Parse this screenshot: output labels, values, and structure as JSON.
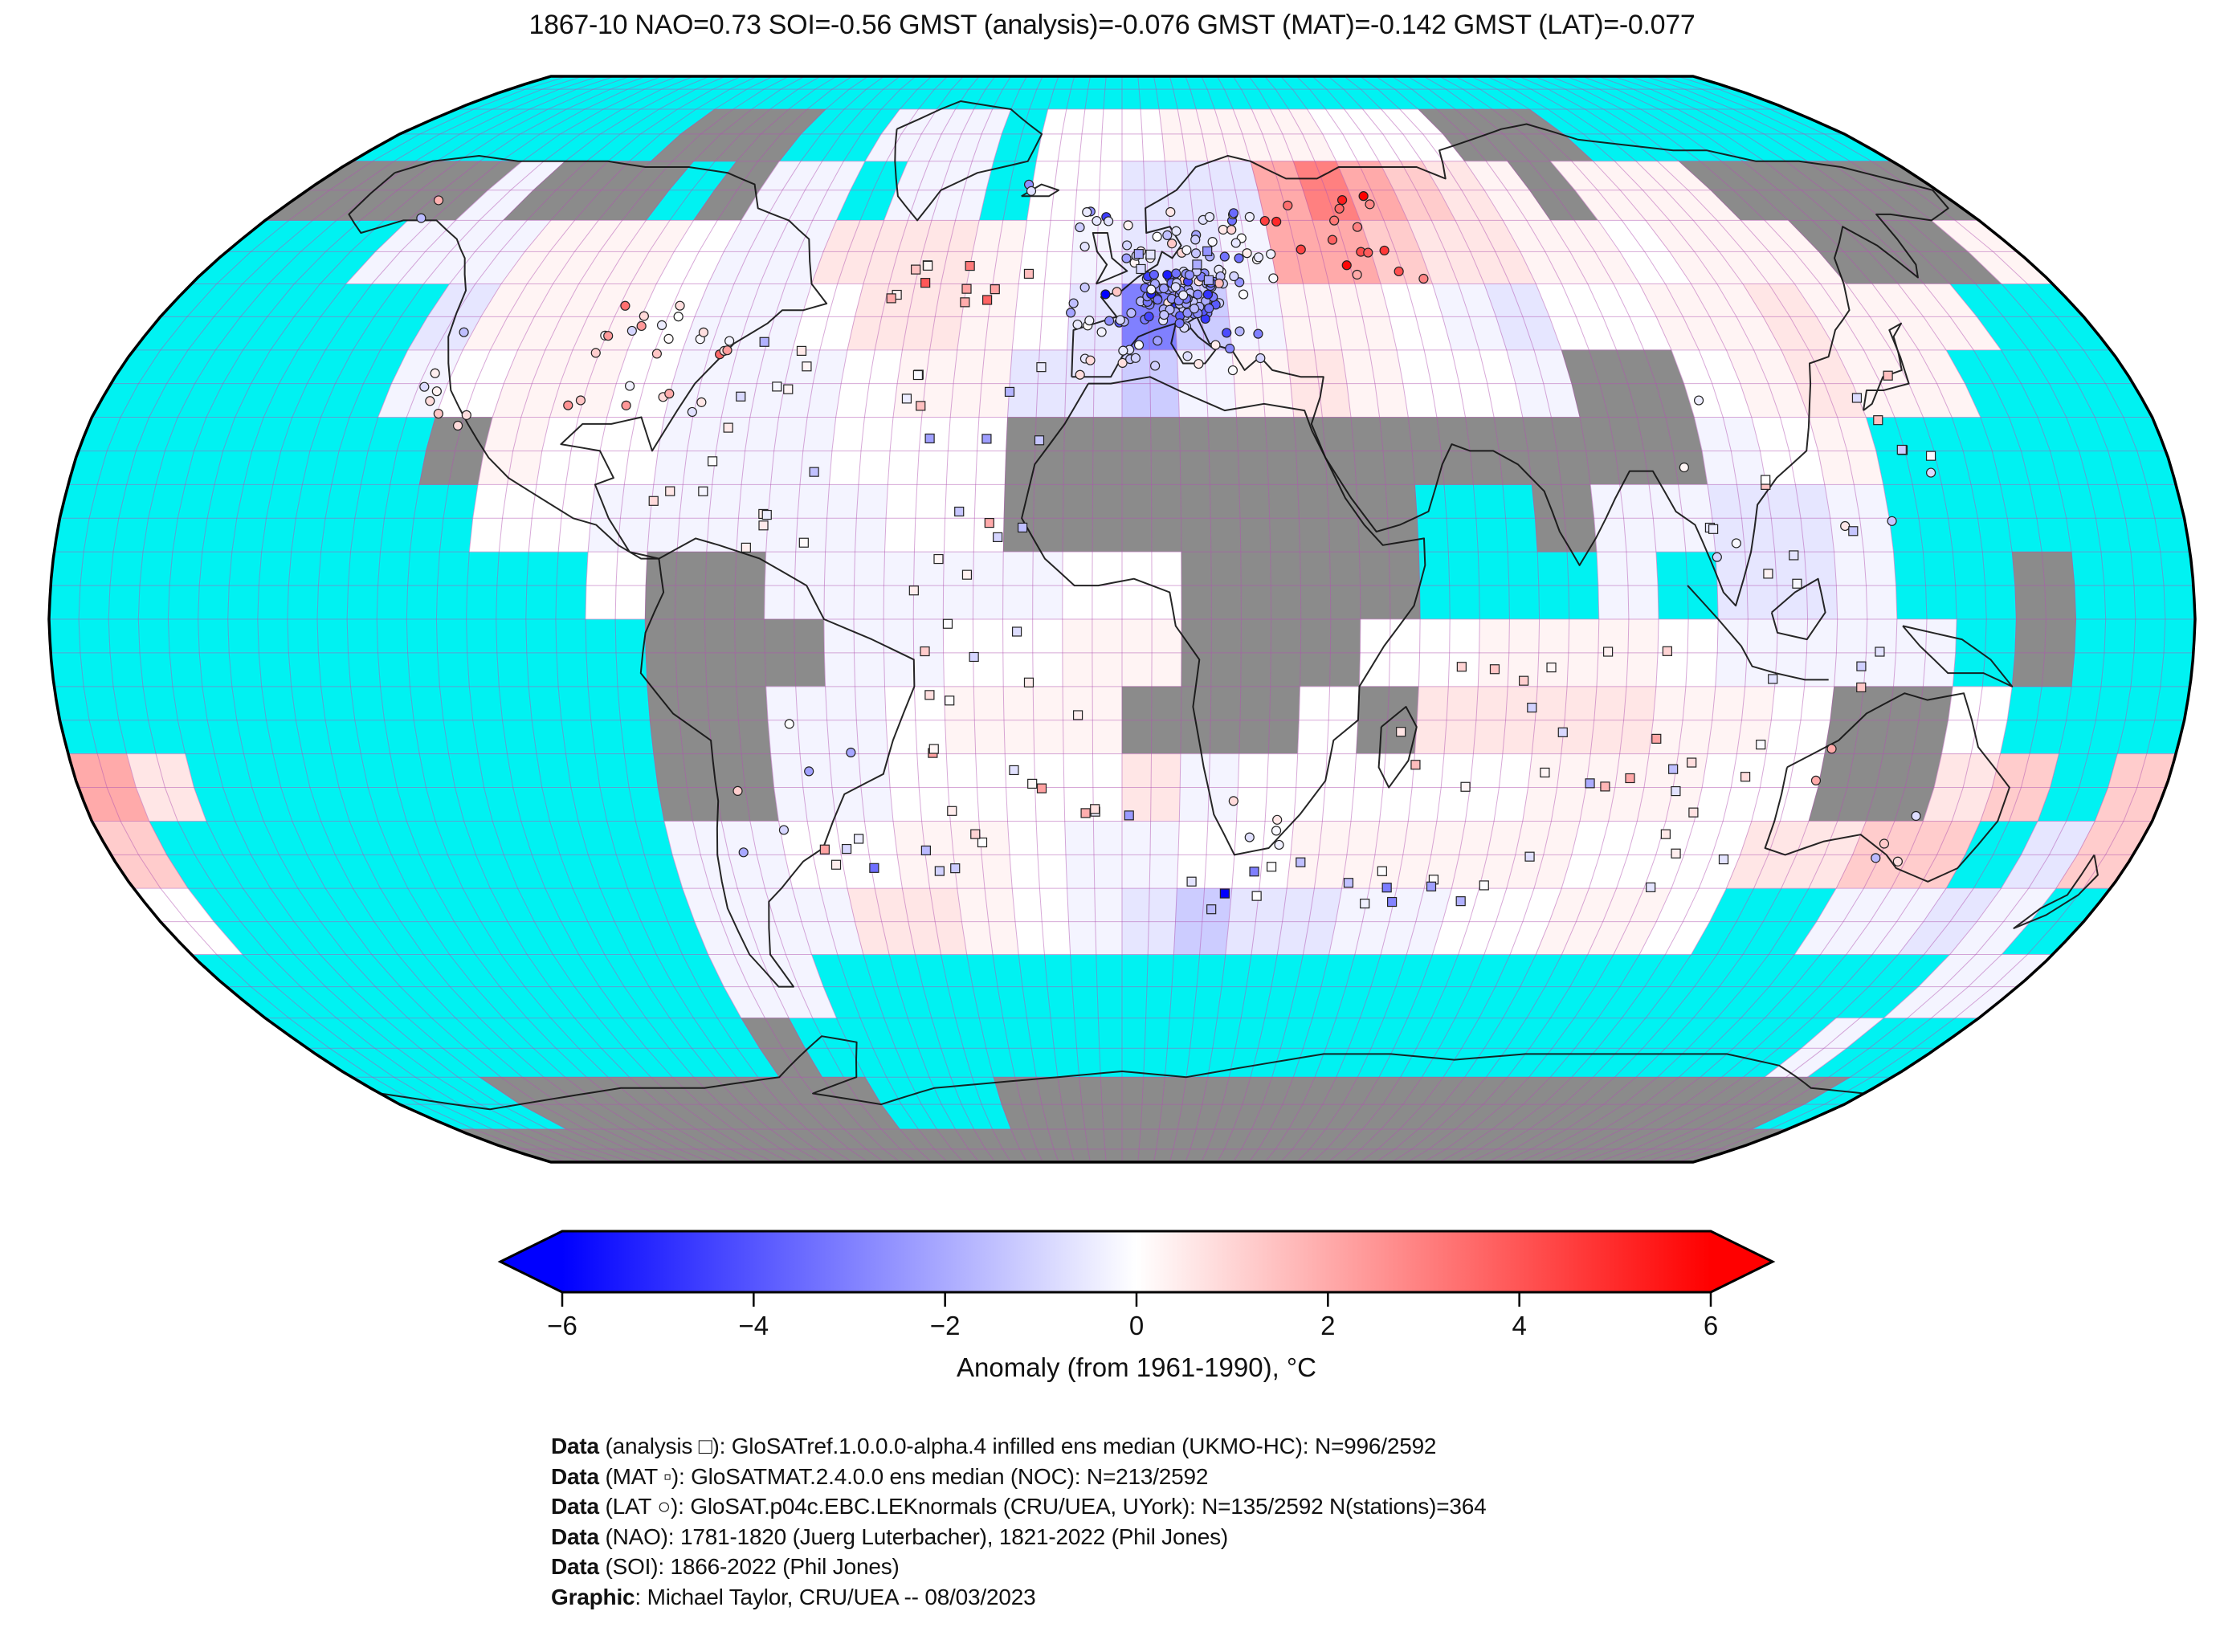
{
  "title": "1867-10 NAO=0.73 SOI=-0.56 GMST (analysis)=-0.076 GMST (MAT)=-0.142 GMST (LAT)=-0.077",
  "footer": {
    "lines": [
      {
        "bold": "Data",
        "rest": " (analysis □): GloSATref.1.0.0.0-alpha.4 infilled ens median (UKMO-HC): N=996/2592"
      },
      {
        "bold": "Data",
        "rest": " (MAT ▫): GloSATMAT.2.4.0.0 ens median (NOC): N=213/2592"
      },
      {
        "bold": "Data",
        "rest": " (LAT ○): GloSAT.p04c.EBC.LEKnormals (CRU/UEA, UYork): N=135/2592 N(stations)=364"
      },
      {
        "bold": "Data",
        "rest": " (NAO): 1781-1820 (Juerg Luterbacher), 1821-2022 (Phil Jones)"
      },
      {
        "bold": "Data",
        "rest": " (SOI): 1866-2022 (Phil Jones)"
      },
      {
        "bold": "Graphic",
        "rest": ": Michael Taylor, CRU/UEA -- 08/03/2023"
      }
    ]
  },
  "chart_data": {
    "type": "heatmap",
    "projection": "Robinson",
    "date": "1867-10",
    "indices": {
      "NAO": 0.73,
      "SOI": -0.56,
      "GMST_analysis": -0.076,
      "GMST_MAT": -0.142,
      "GMST_LAT": -0.077
    },
    "station_counts": {
      "analysis": "996/2592",
      "MAT": "213/2592",
      "LAT": "135/2592",
      "LAT_stations": 364
    },
    "legend_markers": {
      "analysis": "□",
      "MAT": "▫",
      "LAT": "○"
    },
    "colorbar": {
      "label": "Anomaly (from 1961-1990), °C",
      "tick_labels": [
        "−6",
        "−4",
        "−2",
        "0",
        "2",
        "4",
        "6"
      ],
      "vmin": -6,
      "vmax": 6,
      "cmap": "blue-white-red",
      "left_color": "#0000FF",
      "mid_color": "#FFFFFF",
      "right_color": "#FF0000"
    },
    "colors": {
      "ocean_no_data": "#00F2F2",
      "land_no_data": "#8B8B8B",
      "graticule": "#B254B2",
      "coastline": "#141414"
    },
    "grid": {
      "cell_deg": 10,
      "order": "rows from 90N..90S, 36 columns from 180W..180E",
      "value_encoding": {
        "c": "no-data-ocean",
        "g": "no-data-land",
        "0": -3,
        "1": -2,
        "2": -1.2,
        "3": -0.6,
        "4": -0.25,
        "5": 0,
        "6": 0.25,
        "7": 0.6,
        "8": 1.2,
        "9": 2,
        "R": 3
      },
      "rows": [
        "cccccccccccccccccccccccccccccccccccc",
        "cccccccgggcc444c5556666555gggccccccc",
        "gggg4gggcg44c44c553339R9876g666ggggg",
        "ccc44466654477765433499877665666ggg6",
        "ccccc36665445776530246654355667666cc",
        "ccccc456654445663324676554gg56766ccc",
        "ccccccg655444555gggggggggggg456ccccc",
        "ccccccc554444455gggggggccg44334ccccc",
        "ccccccccc5gg4444455ggggccc4c334ccgcc",
        "ccccccccccggg445566ggg5566654444cgcc",
        "ccccccccccgg445666ggg5g7777665gg5ccc",
        "97ccccccccgg445555745555566655gg78c8",
        "8ccccccccc44556654455666665557788c38",
        "5ccccccccc4447765432334455665cc4434c",
        "cccccccccc44cccccccccccccccccccccc44",
        "ccccccccccgcccccccccccccccccccccc4c",
        "cccgggggggggcccggggggggggggggggggggcc",
        "gggggggggggggggggggggggggggggggggggg"
      ]
    }
  }
}
